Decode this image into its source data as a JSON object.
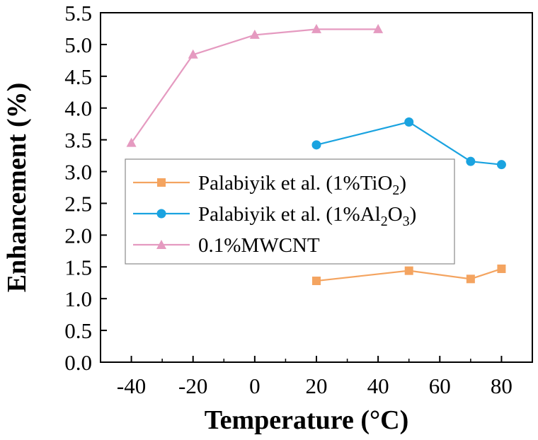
{
  "chart_data": {
    "type": "line",
    "title": "",
    "xlabel": "Temperature (°C)",
    "ylabel": "Enhancement (%)",
    "xlim": [
      -50,
      90
    ],
    "ylim": [
      0.0,
      5.5
    ],
    "xticks": [
      -40,
      -20,
      0,
      20,
      40,
      60,
      80
    ],
    "xtick_labels": [
      "-40",
      "-20",
      "0",
      "20",
      "40",
      "60",
      "80"
    ],
    "yticks": [
      0.0,
      0.5,
      1.0,
      1.5,
      2.0,
      2.5,
      3.0,
      3.5,
      4.0,
      4.5,
      5.0,
      5.5
    ],
    "ytick_labels": [
      "0.0",
      "0.5",
      "1.0",
      "1.5",
      "2.0",
      "2.5",
      "3.0",
      "3.5",
      "4.0",
      "4.5",
      "5.0",
      "5.5"
    ],
    "grid": false,
    "legend_position": "middle-left",
    "series": [
      {
        "name": "Palabiyik et al. (1%TiO2)",
        "label_main": "Palabiyik et al. (1%TiO",
        "label_sub": "2",
        "label_tail": ")",
        "color": "#f4a460",
        "marker": "square",
        "x": [
          20,
          50,
          70,
          80
        ],
        "values": [
          1.28,
          1.44,
          1.31,
          1.47
        ]
      },
      {
        "name": "Palabiyik et al. (1%Al2O3)",
        "label_main": "Palabiyik et al. (1%Al",
        "label_sub": "2",
        "label_mid": "O",
        "label_sub2": "3",
        "label_tail": ")",
        "color": "#1aa3e0",
        "marker": "circle",
        "x": [
          20,
          50,
          70,
          80
        ],
        "values": [
          3.42,
          3.78,
          3.16,
          3.11
        ]
      },
      {
        "name": "0.1%MWCNT",
        "label_main": "0.1%MWCNT",
        "color": "#e59ac0",
        "marker": "triangle",
        "x": [
          -40,
          -20,
          0,
          20,
          40
        ],
        "values": [
          3.45,
          4.84,
          5.15,
          5.24,
          5.24
        ]
      }
    ]
  }
}
